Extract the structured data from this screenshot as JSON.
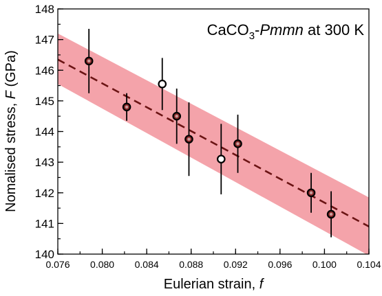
{
  "chart_data": {
    "type": "scatter",
    "annotation": {
      "formula_main": "CaCO",
      "formula_sub": "3",
      "separator": "-",
      "space_group": "Pmmn",
      "condition": " at 300 K"
    },
    "xlabel": {
      "text": "Eulerian strain, ",
      "var": "f"
    },
    "ylabel": {
      "text": "Nomalised stress, ",
      "var": "F",
      "unit": " (GPa)"
    },
    "xlim": [
      0.076,
      0.104
    ],
    "ylim": [
      140,
      148
    ],
    "x_ticks": [
      "0.076",
      "0.080",
      "0.084",
      "0.088",
      "0.092",
      "0.096",
      "0.100",
      "0.104"
    ],
    "y_ticks": [
      "140",
      "141",
      "142",
      "143",
      "144",
      "145",
      "146",
      "147",
      "148"
    ],
    "x_minor_step": 0.002,
    "y_minor_step": 0.5,
    "points": [
      {
        "x": 0.0788,
        "y": 146.3,
        "err": 1.05,
        "style": "filled"
      },
      {
        "x": 0.0822,
        "y": 144.8,
        "err": 0.45,
        "style": "filled"
      },
      {
        "x": 0.0854,
        "y": 145.55,
        "err": 0.85,
        "style": "open"
      },
      {
        "x": 0.0867,
        "y": 144.5,
        "err": 0.9,
        "style": "filled"
      },
      {
        "x": 0.0878,
        "y": 143.75,
        "err": 1.2,
        "style": "filled"
      },
      {
        "x": 0.0907,
        "y": 143.1,
        "err": 1.15,
        "style": "open"
      },
      {
        "x": 0.0922,
        "y": 143.6,
        "err": 0.95,
        "style": "filled"
      },
      {
        "x": 0.0988,
        "y": 142.0,
        "err": 0.65,
        "style": "filled"
      },
      {
        "x": 0.1006,
        "y": 141.3,
        "err": 0.75,
        "style": "filled"
      }
    ],
    "fit": {
      "x": [
        0.076,
        0.104
      ],
      "y": [
        146.35,
        140.9
      ],
      "band_upper": [
        147.2,
        141.85
      ],
      "band_lower": [
        145.55,
        139.95
      ]
    },
    "colors": {
      "band": "#f4a3aa",
      "fit_line": "#6b1414",
      "marker_edge": "#000000",
      "marker_fill": "#8b2a2a",
      "open_fill": "#ffffff",
      "error_bar": "#000000"
    },
    "grid": false,
    "legend": "none"
  }
}
